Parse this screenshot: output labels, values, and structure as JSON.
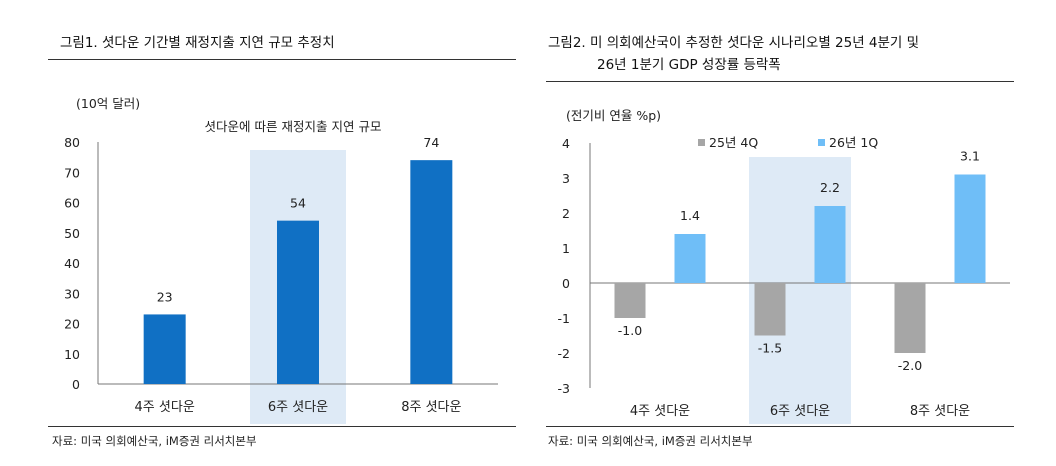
{
  "figures": {
    "left": {
      "title": "그림1.  셧다운 기간별 재정지출 지연 규모 추정치",
      "source": "자료: 미국 의회예산국, iM증권 리서치본부"
    },
    "right": {
      "title_line1": "그림2.  미 의회예산국이 추정한 셧다운 시나리오별 25년 4분기 및",
      "title_line2": "26년 1분기 GDP 성장률 등락폭",
      "source": "자료: 미국 의회예산국, iM증권 리서치본부"
    }
  },
  "colors": {
    "bar_blue": "#1070C4",
    "series_gray": "#A6A6A6",
    "series_lightblue": "#6FBEF7",
    "highlight": "#DEEAF6"
  },
  "chart_data": [
    {
      "type": "bar",
      "title": "셧다운에 따른 재정지출 지연 규모",
      "unit_label": "(10억 달러)",
      "categories": [
        "4주 셧다운",
        "6주 셧다운",
        "8주 셧다운"
      ],
      "values": [
        23,
        54,
        74
      ],
      "data_labels": [
        "23",
        "54",
        "74"
      ],
      "ylim": [
        0,
        80
      ],
      "yticks": [
        "0",
        "10",
        "20",
        "30",
        "40",
        "50",
        "60",
        "70",
        "80"
      ],
      "highlight_category": "6주 셧다운",
      "grid": false
    },
    {
      "type": "bar",
      "unit_label": "(전기비 연율 %p)",
      "categories": [
        "4주 셧다운",
        "6주 셧다운",
        "8주 셧다운"
      ],
      "series": [
        {
          "name": "25년 4Q",
          "values": [
            -1.0,
            -1.5,
            -2.0
          ],
          "labels": [
            "-1.0",
            "-1.5",
            "-2.0"
          ]
        },
        {
          "name": "26년 1Q",
          "values": [
            1.4,
            2.2,
            3.1
          ],
          "labels": [
            "1.4",
            "2.2",
            "3.1"
          ]
        }
      ],
      "ylim": [
        -3,
        4
      ],
      "yticks": [
        "-3",
        "-2",
        "-1",
        "0",
        "1",
        "2",
        "3",
        "4"
      ],
      "legend_position": "top",
      "highlight_category": "6주 셧다운",
      "grid": false
    }
  ]
}
